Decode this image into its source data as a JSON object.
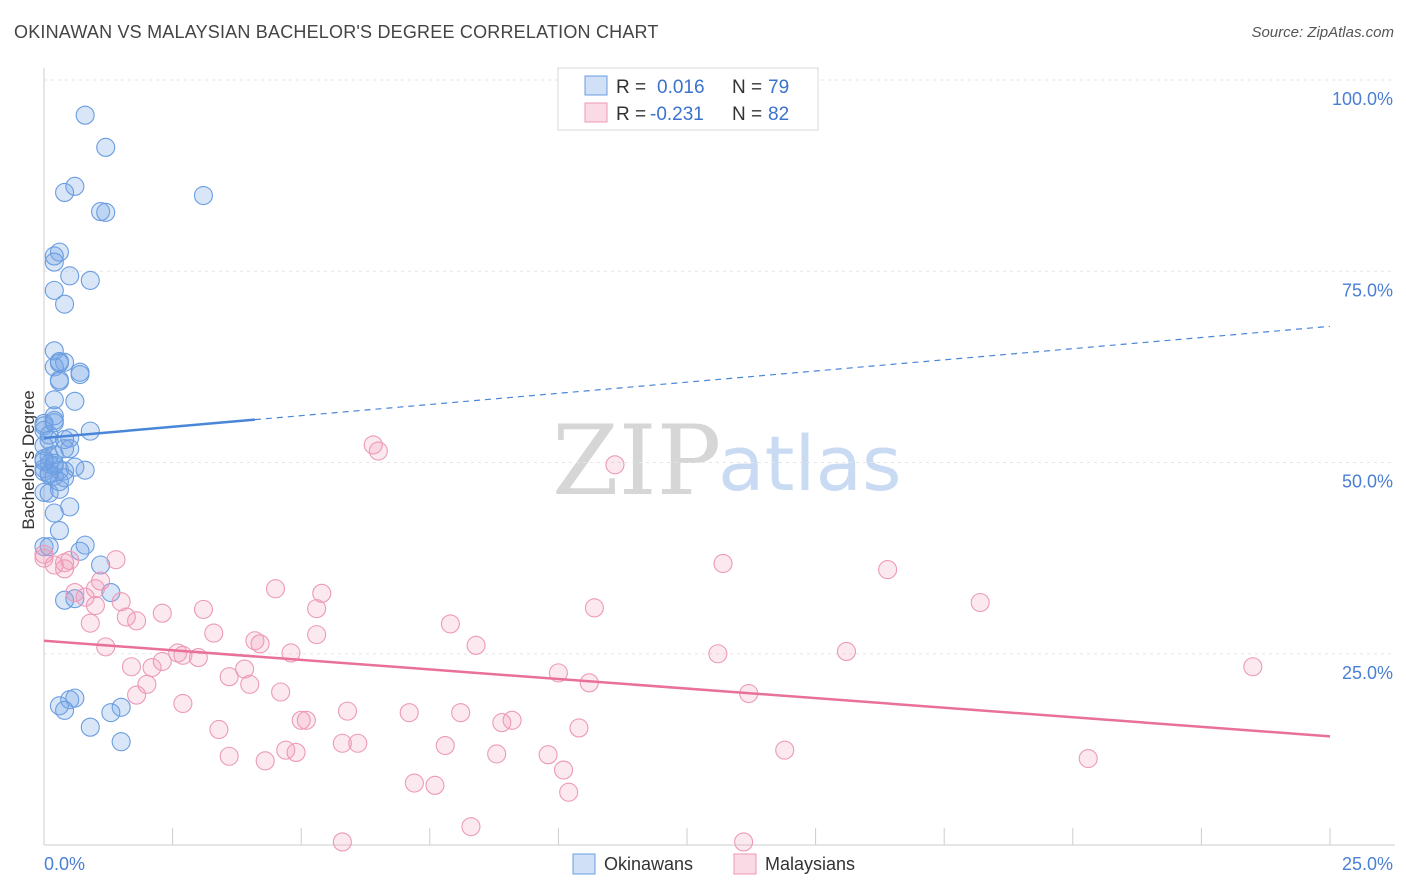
{
  "chart_data": {
    "type": "scatter",
    "title": "OKINAWAN VS MALAYSIAN BACHELOR'S DEGREE CORRELATION CHART",
    "source": "Source: ZipAtlas.com",
    "xlabel": "",
    "ylabel": "Bachelor's Degree",
    "xlim": [
      0,
      25
    ],
    "ylim": [
      0,
      104
    ],
    "x_tick_labels": {
      "left": "0.0%",
      "right": "25.0%"
    },
    "y_ticks": [
      {
        "value": 100,
        "label": "100.0%"
      },
      {
        "value": 75,
        "label": "75.0%"
      },
      {
        "value": 50,
        "label": "50.0%"
      },
      {
        "value": 25,
        "label": "25.0%"
      }
    ],
    "watermark": {
      "zip": "ZIP",
      "atlas": "atlas"
    },
    "legend": {
      "rows": [
        {
          "r_label": "R =",
          "r_value": "0.016",
          "n_label": "N =",
          "n_value": "79"
        },
        {
          "r_label": "R =",
          "r_value": "-0.231",
          "n_label": "N =",
          "n_value": "82"
        }
      ]
    },
    "series": [
      {
        "name": "Okinawans",
        "color": "#4a86d8",
        "trend": {
          "solid": [
            [
              0,
              53.2
            ],
            [
              4.1,
              55.6
            ]
          ],
          "dashed": [
            [
              4.1,
              55.6
            ],
            [
              25,
              67.8
            ]
          ]
        },
        "points": [
          [
            0.8,
            95.4
          ],
          [
            1.2,
            91.2
          ],
          [
            0.6,
            86.1
          ],
          [
            0.4,
            85.3
          ],
          [
            3.1,
            84.9
          ],
          [
            1.1,
            82.8
          ],
          [
            1.2,
            82.7
          ],
          [
            0.3,
            77.5
          ],
          [
            0.2,
            76.2
          ],
          [
            0.5,
            74.4
          ],
          [
            0.9,
            73.8
          ],
          [
            0.2,
            72.5
          ],
          [
            0.4,
            70.7
          ],
          [
            0.2,
            64.6
          ],
          [
            0.3,
            63.2
          ],
          [
            0.4,
            63.1
          ],
          [
            0.2,
            62.5
          ],
          [
            0.7,
            61.8
          ],
          [
            0.3,
            60.8
          ],
          [
            0.3,
            60.6
          ],
          [
            0.6,
            58.0
          ],
          [
            0.2,
            58.2
          ],
          [
            0.2,
            56.1
          ],
          [
            0.2,
            55.5
          ],
          [
            0.0,
            55.1
          ],
          [
            0.0,
            54.8
          ],
          [
            0.0,
            54.2
          ],
          [
            0.1,
            53.6
          ],
          [
            0.1,
            52.9
          ],
          [
            0.5,
            53.2
          ],
          [
            0.9,
            54.1
          ],
          [
            0.0,
            52.2
          ],
          [
            0.4,
            51.8
          ],
          [
            0.1,
            50.8
          ],
          [
            0.2,
            51.0
          ],
          [
            0.0,
            50.5
          ],
          [
            0.1,
            49.8
          ],
          [
            0.2,
            49.6
          ],
          [
            0.0,
            49.2
          ],
          [
            0.3,
            49.0
          ],
          [
            0.4,
            48.9
          ],
          [
            0.6,
            49.4
          ],
          [
            0.8,
            49.0
          ],
          [
            0.0,
            48.8
          ],
          [
            0.1,
            48.4
          ],
          [
            0.2,
            48.2
          ],
          [
            0.4,
            48.0
          ],
          [
            0.0,
            46.1
          ],
          [
            0.3,
            46.5
          ],
          [
            0.5,
            44.2
          ],
          [
            0.2,
            43.4
          ],
          [
            0.3,
            41.1
          ],
          [
            0.0,
            39.0
          ],
          [
            0.8,
            39.2
          ],
          [
            0.7,
            38.4
          ],
          [
            1.1,
            36.6
          ],
          [
            0.4,
            32.0
          ],
          [
            0.6,
            32.2
          ],
          [
            1.3,
            33.0
          ],
          [
            0.5,
            19.0
          ],
          [
            0.6,
            19.2
          ],
          [
            0.3,
            18.2
          ],
          [
            0.4,
            17.6
          ],
          [
            1.5,
            18.0
          ],
          [
            1.3,
            17.3
          ],
          [
            0.9,
            15.4
          ],
          [
            1.5,
            13.5
          ],
          [
            0.1,
            39.0
          ],
          [
            0.3,
            63.0
          ],
          [
            0.2,
            77.0
          ],
          [
            0.4,
            53.0
          ],
          [
            0.1,
            48.6
          ],
          [
            0.2,
            49.9
          ],
          [
            0.1,
            46.0
          ],
          [
            0.3,
            47.5
          ],
          [
            0.7,
            61.5
          ],
          [
            0.5,
            51.8
          ],
          [
            0.0,
            50.2
          ],
          [
            0.2,
            55.2
          ]
        ]
      },
      {
        "name": "Malaysians",
        "color": "#e8709a",
        "trend": {
          "solid": [
            [
              0,
              26.7
            ],
            [
              25,
              14.2
            ]
          ]
        },
        "points": [
          [
            0.0,
            38.0
          ],
          [
            0.0,
            37.5
          ],
          [
            0.2,
            36.6
          ],
          [
            0.4,
            36.9
          ],
          [
            1.4,
            37.3
          ],
          [
            0.4,
            36.1
          ],
          [
            0.5,
            37.2
          ],
          [
            1.1,
            34.5
          ],
          [
            1.0,
            33.5
          ],
          [
            0.8,
            32.4
          ],
          [
            0.6,
            33.0
          ],
          [
            1.0,
            31.3
          ],
          [
            1.5,
            31.8
          ],
          [
            2.3,
            30.3
          ],
          [
            3.1,
            30.8
          ],
          [
            5.3,
            30.9
          ],
          [
            5.4,
            32.9
          ],
          [
            4.5,
            33.5
          ],
          [
            0.9,
            29.0
          ],
          [
            1.6,
            29.8
          ],
          [
            1.8,
            29.3
          ],
          [
            3.3,
            27.7
          ],
          [
            5.3,
            27.5
          ],
          [
            4.2,
            26.3
          ],
          [
            4.1,
            26.7
          ],
          [
            1.2,
            25.9
          ],
          [
            2.6,
            25.1
          ],
          [
            2.7,
            24.8
          ],
          [
            2.3,
            24.0
          ],
          [
            3.0,
            24.5
          ],
          [
            4.8,
            25.1
          ],
          [
            2.1,
            23.2
          ],
          [
            1.7,
            23.3
          ],
          [
            3.9,
            23.0
          ],
          [
            3.6,
            22.0
          ],
          [
            2.0,
            21.0
          ],
          [
            4.0,
            21.0
          ],
          [
            4.6,
            20.0
          ],
          [
            1.8,
            19.6
          ],
          [
            2.7,
            18.5
          ],
          [
            5.1,
            16.3
          ],
          [
            5.0,
            16.3
          ],
          [
            5.9,
            17.5
          ],
          [
            7.1,
            17.3
          ],
          [
            8.1,
            17.3
          ],
          [
            8.9,
            16.0
          ],
          [
            9.1,
            16.3
          ],
          [
            10.4,
            15.3
          ],
          [
            3.4,
            15.1
          ],
          [
            5.8,
            13.3
          ],
          [
            6.1,
            13.3
          ],
          [
            7.8,
            13.0
          ],
          [
            3.6,
            11.6
          ],
          [
            4.3,
            11.0
          ],
          [
            4.7,
            12.4
          ],
          [
            4.9,
            12.1
          ],
          [
            8.8,
            11.9
          ],
          [
            9.8,
            11.8
          ],
          [
            10.1,
            9.8
          ],
          [
            7.2,
            8.1
          ],
          [
            7.6,
            7.8
          ],
          [
            10.2,
            6.9
          ],
          [
            8.3,
            2.4
          ],
          [
            5.8,
            0.4
          ],
          [
            13.6,
            0.4
          ],
          [
            6.4,
            52.3
          ],
          [
            6.5,
            51.5
          ],
          [
            11.1,
            49.7
          ],
          [
            10.7,
            31.0
          ],
          [
            7.9,
            28.9
          ],
          [
            8.4,
            26.1
          ],
          [
            13.2,
            36.8
          ],
          [
            16.4,
            36.0
          ],
          [
            18.2,
            31.7
          ],
          [
            15.6,
            25.3
          ],
          [
            13.1,
            25.0
          ],
          [
            10.0,
            22.5
          ],
          [
            10.6,
            21.2
          ],
          [
            13.7,
            19.8
          ],
          [
            14.4,
            12.4
          ],
          [
            23.5,
            23.3
          ],
          [
            20.3,
            11.3
          ]
        ]
      }
    ]
  }
}
